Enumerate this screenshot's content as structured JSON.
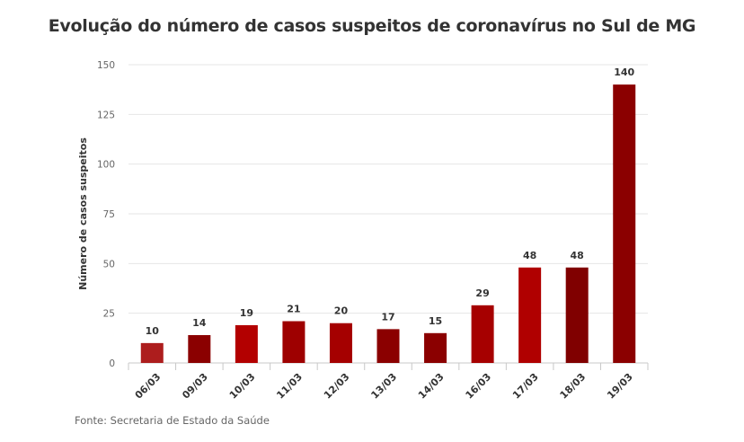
{
  "chart_data": {
    "type": "bar",
    "title": "Evolução do número de casos suspeitos de coronavírus no Sul de MG",
    "xlabel": "",
    "ylabel": "Número de casos suspeitos",
    "categories": [
      "06/03",
      "09/03",
      "10/03",
      "11/03",
      "12/03",
      "13/03",
      "14/03",
      "16/03",
      "17/03",
      "18/03",
      "19/03"
    ],
    "values": [
      10,
      14,
      19,
      21,
      20,
      17,
      15,
      29,
      48,
      48,
      140
    ],
    "data_labels": [
      "10",
      "14",
      "19",
      "21",
      "20",
      "17",
      "15",
      "29",
      "48",
      "48",
      "140"
    ],
    "bar_colors": [
      "#ad1d1d",
      "#8b0000",
      "#b30000",
      "#9e0000",
      "#a50000",
      "#8b0000",
      "#8b0000",
      "#a60000",
      "#b00000",
      "#800000",
      "#8b0000"
    ],
    "ylim": [
      0,
      150
    ],
    "yticks": [
      0,
      25,
      50,
      75,
      100,
      125,
      150
    ],
    "ytick_labels": [
      "0",
      "25",
      "50",
      "75",
      "100",
      "125",
      "150"
    ],
    "grid": true,
    "legend": "none",
    "source": "Fonte: Secretaria de Estado da Saúde"
  }
}
